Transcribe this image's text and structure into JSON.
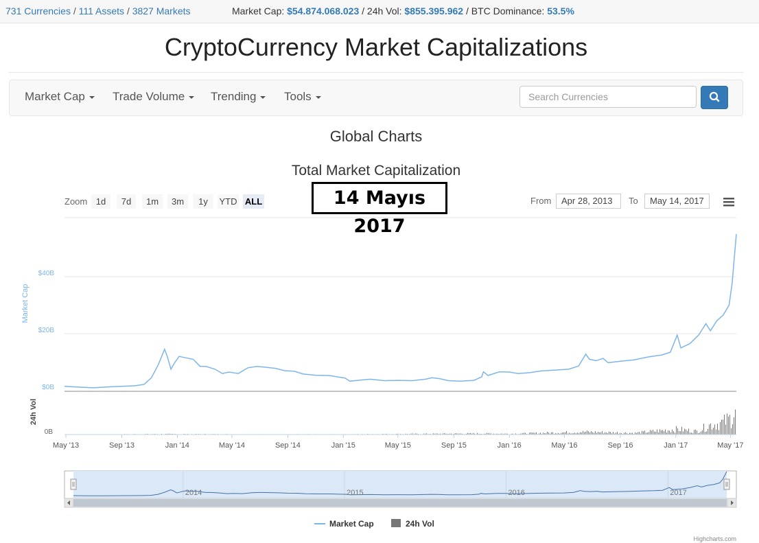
{
  "topbar": {
    "currencies": "731 Currencies",
    "assets": "111 Assets",
    "markets": "3827 Markets",
    "sep": "/",
    "market_cap_label": "Market Cap:",
    "market_cap_value": "$54.874.068.023",
    "vol_label": "/ 24h Vol:",
    "vol_value": "$855.395.962",
    "btc_label": "/ BTC Dominance:",
    "btc_value": "53.5%"
  },
  "site_title": "CryptoCurrency Market Capitalizations",
  "navbar": {
    "items": [
      {
        "label": "Market Cap"
      },
      {
        "label": "Trade Volume"
      },
      {
        "label": "Trending"
      },
      {
        "label": "Tools"
      }
    ],
    "search_placeholder": "Search Currencies",
    "search_icon": "search-icon"
  },
  "page_heading": "Global Charts",
  "chart_title": "Total Market Capitalization",
  "overlay_date": "14 Mayıs 2017",
  "range_selector": {
    "zoom_label": "Zoom",
    "buttons": [
      "1d",
      "7d",
      "1m",
      "3m",
      "1y",
      "YTD",
      "ALL"
    ],
    "active": "ALL",
    "from_label": "From",
    "from_value": "Apr 28, 2013",
    "to_label": "To",
    "to_value": "May 14, 2017",
    "menu_icon": "hamburger-menu-icon"
  },
  "chart_data": {
    "type": "line",
    "x_label": "",
    "y_axis_title": "Market Cap",
    "volume_axis_title": "24h Vol",
    "y_ticks": [
      "$0B",
      "$20B",
      "$40B"
    ],
    "y_tick_values": [
      0,
      20,
      40
    ],
    "y_range": [
      0,
      55
    ],
    "volume_tick": "0B",
    "x_ticks": [
      "May '13",
      "Sep '13",
      "Jan '14",
      "May '14",
      "Sep '14",
      "Jan '15",
      "May '15",
      "Sep '15",
      "Jan '16",
      "May '16",
      "Sep '16",
      "Jan '17",
      "May '17"
    ],
    "navigator_ticks": [
      "2014",
      "2015",
      "2016",
      "2017"
    ],
    "series": [
      {
        "name": "Market Cap",
        "color": "#7cb5ec",
        "unit": "$B",
        "points": [
          [
            "2013-04-28",
            1.5
          ],
          [
            "2013-06-01",
            1.2
          ],
          [
            "2013-07-01",
            1.0
          ],
          [
            "2013-08-01",
            1.3
          ],
          [
            "2013-09-01",
            1.5
          ],
          [
            "2013-10-01",
            1.7
          ],
          [
            "2013-10-20",
            2.2
          ],
          [
            "2013-11-05",
            4.5
          ],
          [
            "2013-11-20",
            9.0
          ],
          [
            "2013-12-04",
            14.5
          ],
          [
            "2013-12-10",
            12.0
          ],
          [
            "2013-12-18",
            7.5
          ],
          [
            "2013-12-25",
            9.5
          ],
          [
            "2014-01-05",
            12.0
          ],
          [
            "2014-01-20",
            11.5
          ],
          [
            "2014-02-05",
            11.0
          ],
          [
            "2014-02-20",
            8.5
          ],
          [
            "2014-03-05",
            8.5
          ],
          [
            "2014-03-25",
            7.5
          ],
          [
            "2014-04-10",
            6.0
          ],
          [
            "2014-04-25",
            6.5
          ],
          [
            "2014-05-15",
            6.0
          ],
          [
            "2014-06-05",
            8.0
          ],
          [
            "2014-06-25",
            8.5
          ],
          [
            "2014-07-15",
            8.2
          ],
          [
            "2014-08-05",
            7.8
          ],
          [
            "2014-08-25",
            7.0
          ],
          [
            "2014-09-15",
            6.8
          ],
          [
            "2014-10-05",
            5.8
          ],
          [
            "2014-11-01",
            5.4
          ],
          [
            "2014-12-01",
            5.3
          ],
          [
            "2014-12-20",
            4.8
          ],
          [
            "2015-01-05",
            4.4
          ],
          [
            "2015-01-15",
            3.3
          ],
          [
            "2015-02-01",
            3.6
          ],
          [
            "2015-03-01",
            4.0
          ],
          [
            "2015-04-01",
            3.5
          ],
          [
            "2015-05-01",
            3.6
          ],
          [
            "2015-06-01",
            3.5
          ],
          [
            "2015-07-01",
            4.0
          ],
          [
            "2015-07-15",
            4.5
          ],
          [
            "2015-08-01",
            4.2
          ],
          [
            "2015-08-20",
            3.5
          ],
          [
            "2015-09-15",
            3.3
          ],
          [
            "2015-10-15",
            3.6
          ],
          [
            "2015-11-01",
            4.8
          ],
          [
            "2015-11-05",
            6.6
          ],
          [
            "2015-11-15",
            5.3
          ],
          [
            "2015-12-10",
            6.6
          ],
          [
            "2016-01-01",
            6.5
          ],
          [
            "2016-01-20",
            6.0
          ],
          [
            "2016-02-15",
            6.3
          ],
          [
            "2016-03-10",
            6.9
          ],
          [
            "2016-04-10",
            7.2
          ],
          [
            "2016-05-10",
            7.5
          ],
          [
            "2016-06-01",
            8.6
          ],
          [
            "2016-06-17",
            12.8
          ],
          [
            "2016-06-25",
            11.0
          ],
          [
            "2016-07-10",
            10.5
          ],
          [
            "2016-07-25",
            11.3
          ],
          [
            "2016-08-05",
            9.8
          ],
          [
            "2016-09-01",
            10.3
          ],
          [
            "2016-10-01",
            10.8
          ],
          [
            "2016-11-01",
            11.8
          ],
          [
            "2016-12-01",
            12.5
          ],
          [
            "2016-12-20",
            13.5
          ],
          [
            "2017-01-04",
            19.5
          ],
          [
            "2017-01-12",
            15.0
          ],
          [
            "2017-02-01",
            16.5
          ],
          [
            "2017-02-20",
            19.5
          ],
          [
            "2017-03-08",
            23.5
          ],
          [
            "2017-03-18",
            21.0
          ],
          [
            "2017-04-01",
            24.5
          ],
          [
            "2017-04-15",
            26.5
          ],
          [
            "2017-04-28",
            30.0
          ],
          [
            "2017-05-05",
            38.0
          ],
          [
            "2017-05-10",
            47.5
          ],
          [
            "2017-05-14",
            55.0
          ]
        ]
      },
      {
        "name": "24h Vol",
        "color": "#777777",
        "unit": "$B",
        "note_scale_max": 1.0,
        "points": [
          [
            "2013-04-28",
            0.0
          ],
          [
            "2013-12-01",
            0.02
          ],
          [
            "2014-06-01",
            0.01
          ],
          [
            "2015-01-01",
            0.01
          ],
          [
            "2015-11-05",
            0.04
          ],
          [
            "2016-01-01",
            0.03
          ],
          [
            "2016-06-17",
            0.1
          ],
          [
            "2016-10-01",
            0.06
          ],
          [
            "2017-01-04",
            0.2
          ],
          [
            "2017-02-15",
            0.12
          ],
          [
            "2017-03-15",
            0.35
          ],
          [
            "2017-04-15",
            0.45
          ],
          [
            "2017-05-01",
            0.6
          ],
          [
            "2017-05-10",
            0.9
          ],
          [
            "2017-05-14",
            1.0
          ]
        ]
      }
    ]
  },
  "legend": [
    {
      "name": "Market Cap",
      "color": "#7cb5ec"
    },
    {
      "name": "24h Vol",
      "color": "#777777"
    }
  ],
  "credits": "Highcharts.com"
}
